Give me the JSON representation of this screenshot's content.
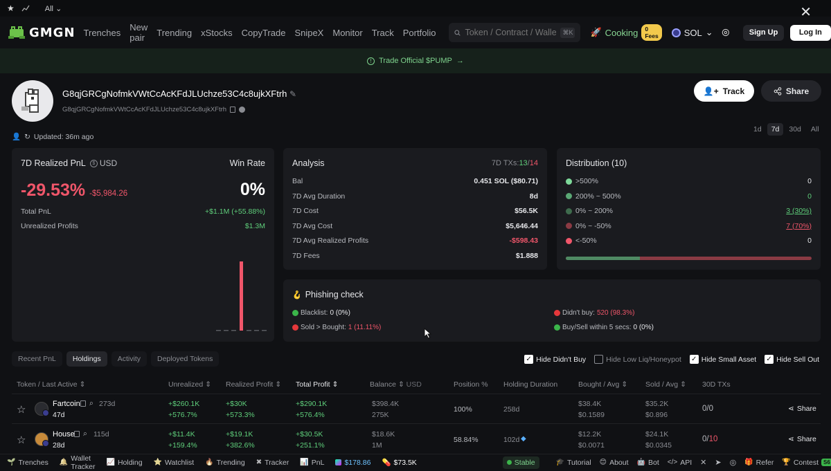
{
  "strip": {
    "filter": "All"
  },
  "nav": {
    "brand": "GMGN",
    "links": [
      "Trenches",
      "New pair",
      "Trending",
      "xStocks",
      "CopyTrade",
      "SnipeX",
      "Monitor",
      "Track",
      "Portfolio"
    ],
    "search_placeholder": "Token / Contract / Wallet",
    "search_shortcut": "⌘K",
    "cooking": "Cooking",
    "fees_badge": "0 Fees",
    "chain": "SOL",
    "signup": "Sign Up",
    "login": "Log In"
  },
  "banner": {
    "text": "Trade Official $PUMP"
  },
  "profile": {
    "name": "G8qjGRCgNofmkVWtCcAcKFdJLUchze53C4c8ujkXFtrh",
    "address": "G8qjGRCgNofmkVWtCcAcKFdJLUchze53C4c8ujkXFtrh",
    "updated": "Updated: 36m ago",
    "track": "Track",
    "share": "Share",
    "periods": [
      "1d",
      "7d",
      "30d",
      "All"
    ],
    "active_period": "7d"
  },
  "pnl": {
    "title": "7D Realized PnL",
    "currency": "USD",
    "win_rate_label": "Win Rate",
    "percent": "-29.53%",
    "amount": "-$5,984.26",
    "win_rate": "0%",
    "total_pnl_label": "Total PnL",
    "total_pnl": "+$1.1M (+55.88%)",
    "unrealized_label": "Unrealized Profits",
    "unrealized": "$1.3M",
    "bars": [
      0,
      0,
      0,
      1,
      0,
      0,
      0
    ]
  },
  "analysis": {
    "title": "Analysis",
    "tx_label": "7D TXs:",
    "tx_buys": "13",
    "tx_sep": "/",
    "tx_sells": "14",
    "rows": [
      {
        "k": "Bal",
        "v": "0.451 SOL ($80.71)"
      },
      {
        "k": "7D Avg Duration",
        "v": "8d"
      },
      {
        "k": "7D Cost",
        "v": "$56.5K"
      },
      {
        "k": "7D Avg Cost",
        "v": "$5,646.44"
      },
      {
        "k": "7D Avg Realized Profits",
        "v": "-$598.43"
      },
      {
        "k": "7D Fees",
        "v": "$1.888"
      }
    ]
  },
  "distribution": {
    "title": "Distribution (10)",
    "rows": [
      {
        "label": ">500%",
        "value": "0",
        "color": "#7ed99a"
      },
      {
        "label": "200% ~ 500%",
        "value": "0",
        "color": "#5aa774"
      },
      {
        "label": "0% ~ 200%",
        "value": "3 (30%)",
        "color": "#3e6b4d"
      },
      {
        "label": "0% ~ -50%",
        "value": "7 (70%)",
        "color": "#8a3a43"
      },
      {
        "label": "<-50%",
        "value": "0",
        "color": "#f0566a"
      }
    ],
    "win_fraction": 0.3
  },
  "phishing": {
    "title": "Phishing check",
    "blacklist_label": "Blacklist:",
    "blacklist_value": "0 (0%)",
    "didnt_buy_label": "Didn't buy:",
    "didnt_buy_value": "520 (98.3%)",
    "sold_label": "Sold > Bought:",
    "sold_value": "1 (11.11%)",
    "within5_label": "Buy/Sell within 5 secs:",
    "within5_value": "0 (0%)"
  },
  "tabs": [
    "Recent PnL",
    "Holdings",
    "Activity",
    "Deployed Tokens"
  ],
  "active_tab": "Holdings",
  "filters": [
    {
      "label": "Hide Didn't Buy",
      "checked": true
    },
    {
      "label": "Hide Low Liq/Honeypot",
      "checked": false
    },
    {
      "label": "Hide Small Asset",
      "checked": true
    },
    {
      "label": "Hide Sell Out",
      "checked": true
    }
  ],
  "table": {
    "headers": {
      "token": "Token / Last Active",
      "unrealized": "Unrealized",
      "realized": "Realized Profit",
      "total": "Total Profit",
      "balance": "Balance",
      "balance_unit": "USD",
      "position": "Position %",
      "duration": "Holding Duration",
      "bought": "Bought / Avg",
      "sold": "Sold / Avg",
      "txs": "30D TXs"
    },
    "rows": [
      {
        "name": "Fartcoin",
        "age": "273d",
        "last": "47d",
        "unreal": "+$260.1K",
        "unreal_pct": "+576.7%",
        "real": "+$30K",
        "real_pct": "+573.3%",
        "total": "+$290.1K",
        "total_pct": "+576.4%",
        "bal": "$398.4K",
        "bal_amt": "275K",
        "pos": "100%",
        "dur": "258d",
        "bought": "$38.4K",
        "bought_avg": "$0.1589",
        "sold": "$35.2K",
        "sold_avg": "$0.896",
        "tx_buy": "0",
        "tx_sell": "0",
        "share": "Share"
      },
      {
        "name": "House",
        "age": "115d",
        "last": "28d",
        "unreal": "+$11.4K",
        "unreal_pct": "+159.4%",
        "real": "+$19.1K",
        "real_pct": "+382.6%",
        "total": "+$30.5K",
        "total_pct": "+251.1%",
        "bal": "$18.6K",
        "bal_amt": "1M",
        "pos": "58.84%",
        "dur": "102d",
        "bought": "$12.2K",
        "bought_avg": "$0.0071",
        "sold": "$24.1K",
        "sold_avg": "$0.0345",
        "tx_buy": "0",
        "tx_sell": "10",
        "share": "Share"
      }
    ]
  },
  "footer": {
    "items": [
      "Trenches",
      "Wallet Tracker",
      "Holding",
      "Watchlist",
      "Trending",
      "Tracker",
      "PnL"
    ],
    "sol_price": "$178.86",
    "pump_price": "$73.5K",
    "stable": "Stable",
    "right": [
      "Tutorial",
      "About",
      "Bot",
      "API",
      "Refer",
      "Contest",
      "APP"
    ],
    "contest_badge": "S6"
  }
}
